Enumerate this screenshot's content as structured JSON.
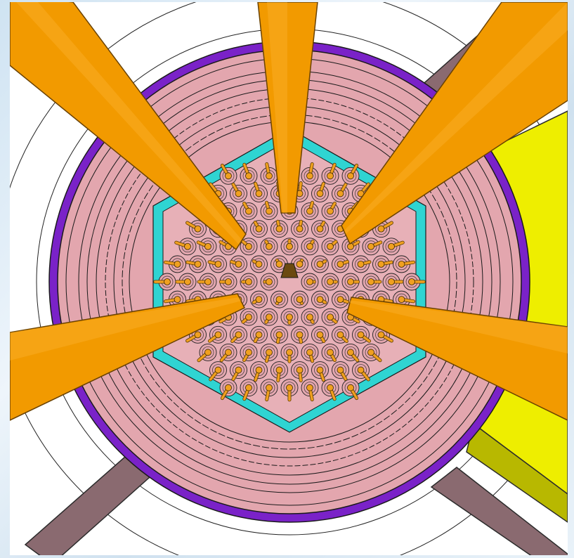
{
  "view": {
    "description_text": "",
    "rod_grid": {
      "rings": 6,
      "pitch_units": 1
    }
  },
  "colors": {
    "frame_bg": "#dbe9f4",
    "viewport_bg": "#ffffff",
    "beam_tube": "#f29a00",
    "beam_tube_edge": "#8a5a00",
    "support_strut": "#8a6a70",
    "vessel_pink": "#e3a6ae",
    "vessel_outer_ring": "#7a22c8",
    "core_reflector_cyan": "#2fd4d2",
    "rod_orange": "#f0a020",
    "moderator_yellow": "#eeee00",
    "outline": "#1a1a1a"
  },
  "components": [
    {
      "name": "beam-tube",
      "count": 6
    },
    {
      "name": "support-strut",
      "count": 4
    },
    {
      "name": "reactor-vessel",
      "count": 1
    },
    {
      "name": "hexagonal-core",
      "count": 1
    },
    {
      "name": "fuel-rod",
      "count": 127
    },
    {
      "name": "cold-source-block",
      "count": 1
    }
  ]
}
